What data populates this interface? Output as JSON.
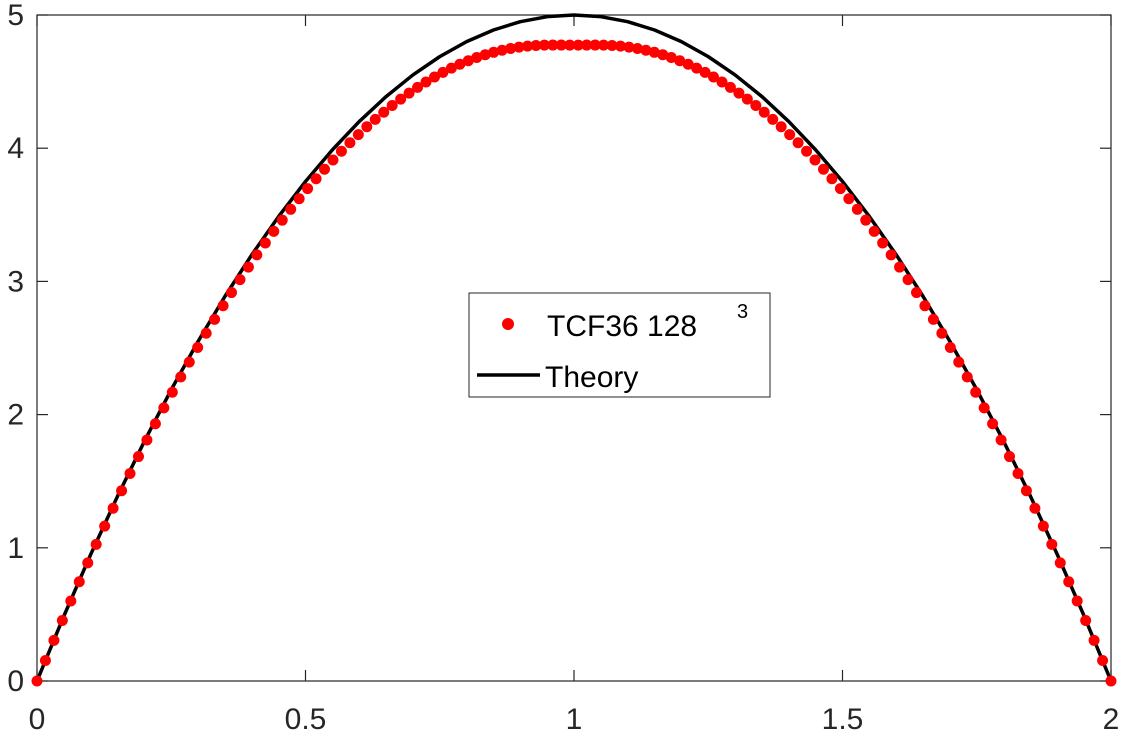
{
  "chart_data": {
    "type": "scatter",
    "title": "",
    "xlabel": "",
    "ylabel": "",
    "xlim": [
      0,
      2
    ],
    "ylim": [
      0,
      5
    ],
    "xticks": [
      0,
      0.5,
      1,
      1.5,
      2
    ],
    "xtick_labels": [
      "0",
      "0.5",
      "1",
      "1.5",
      "2"
    ],
    "yticks": [
      0,
      1,
      2,
      3,
      4,
      5
    ],
    "ytick_labels": [
      "0",
      "1",
      "2",
      "3",
      "4",
      "5"
    ],
    "grid": false,
    "legend": {
      "placement": "center",
      "entries": [
        {
          "label": "TCF36  128",
          "superscript": "3",
          "marker": "dot",
          "color": "#ff0000"
        },
        {
          "label": "Theory",
          "marker": "line",
          "color": "#000000"
        }
      ]
    },
    "series": [
      {
        "name": "TCF36  128^3",
        "kind": "markers",
        "color": "#ff0000",
        "x": [
          0,
          0.0157,
          0.0315,
          0.0472,
          0.063,
          0.0787,
          0.0945,
          0.1102,
          0.126,
          0.1417,
          0.1575,
          0.1732,
          0.189,
          0.2047,
          0.2205,
          0.2362,
          0.252,
          0.2677,
          0.2835,
          0.2992,
          0.315,
          0.3307,
          0.3465,
          0.3622,
          0.378,
          0.3937,
          0.4094,
          0.4252,
          0.4409,
          0.4567,
          0.4724,
          0.4882,
          0.5039,
          0.5197,
          0.5354,
          0.5512,
          0.5669,
          0.5827,
          0.5984,
          0.6142,
          0.6299,
          0.6457,
          0.6614,
          0.6772,
          0.6929,
          0.7087,
          0.7244,
          0.7402,
          0.7559,
          0.7717,
          0.7874,
          0.8031,
          0.8189,
          0.8346,
          0.8504,
          0.8661,
          0.8819,
          0.8976,
          0.9134,
          0.9291,
          0.9449,
          0.9606,
          0.9764,
          0.9921,
          1.0079,
          1.0236,
          1.0394,
          1.0551,
          1.0709,
          1.0866,
          1.1024,
          1.1181,
          1.1339,
          1.1496,
          1.1654,
          1.1811,
          1.1969,
          1.2126,
          1.2283,
          1.2441,
          1.2598,
          1.2756,
          1.2913,
          1.3071,
          1.3228,
          1.3386,
          1.3543,
          1.3701,
          1.3858,
          1.4016,
          1.4173,
          1.4331,
          1.4488,
          1.4646,
          1.4803,
          1.4961,
          1.5118,
          1.5276,
          1.5433,
          1.5591,
          1.5748,
          1.5906,
          1.6063,
          1.622,
          1.6378,
          1.6535,
          1.6693,
          1.685,
          1.7008,
          1.7165,
          1.7323,
          1.748,
          1.7638,
          1.7795,
          1.7953,
          1.811,
          1.8268,
          1.8425,
          1.8583,
          1.874,
          1.8898,
          1.9055,
          1.9213,
          1.937,
          1.9528,
          1.9685,
          1.9843,
          2
        ],
        "y": [
          0,
          0.1539,
          0.3053,
          0.4543,
          0.6008,
          0.7449,
          0.8866,
          1.0258,
          1.1626,
          1.2969,
          1.4287,
          1.5581,
          1.685,
          1.8094,
          1.9313,
          2.0508,
          2.1677,
          2.2822,
          2.3941,
          2.5036,
          2.6105,
          2.715,
          2.8169,
          2.9163,
          3.0132,
          3.1076,
          3.1994,
          3.2887,
          3.3754,
          3.4596,
          3.5413,
          3.6204,
          3.6969,
          3.7709,
          3.8423,
          3.9112,
          3.9774,
          4.0411,
          4.1022,
          4.1607,
          4.2165,
          4.2698,
          4.3205,
          4.3685,
          4.4139,
          4.4567,
          4.4967,
          4.5342,
          4.5689,
          4.601,
          4.6302,
          4.6568,
          4.6806,
          4.7017,
          4.72,
          4.7356,
          4.7483,
          4.7585,
          4.7661,
          4.7711,
          4.7738,
          4.7743,
          4.7743,
          4.7737,
          4.7737,
          4.7743,
          4.7743,
          4.7738,
          4.7711,
          4.7661,
          4.7585,
          4.7483,
          4.7356,
          4.72,
          4.7017,
          4.6806,
          4.6568,
          4.6302,
          4.601,
          4.5689,
          4.5342,
          4.4967,
          4.4567,
          4.4139,
          4.3685,
          4.3205,
          4.2698,
          4.2165,
          4.1607,
          4.1022,
          4.0411,
          3.9774,
          3.9112,
          3.8423,
          3.7709,
          3.6969,
          3.6204,
          3.5413,
          3.4596,
          3.3754,
          3.2887,
          3.1994,
          3.1076,
          3.0132,
          2.9163,
          2.8169,
          2.715,
          2.6105,
          2.5036,
          2.3941,
          2.2822,
          2.1677,
          2.0508,
          1.9313,
          1.8094,
          1.685,
          1.5581,
          1.4287,
          1.2969,
          1.1626,
          1.0258,
          0.8866,
          0.7449,
          0.6008,
          0.4543,
          0.3053,
          0.1539,
          0
        ]
      },
      {
        "name": "Theory",
        "kind": "line",
        "color": "#000000",
        "x": [
          0,
          0.05,
          0.1,
          0.15,
          0.2,
          0.25,
          0.3,
          0.35,
          0.4,
          0.45,
          0.5,
          0.55,
          0.6,
          0.65,
          0.7,
          0.75,
          0.8,
          0.85,
          0.9,
          0.95,
          1,
          1.05,
          1.1,
          1.15,
          1.2,
          1.25,
          1.3,
          1.35,
          1.4,
          1.45,
          1.5,
          1.55,
          1.6,
          1.65,
          1.7,
          1.75,
          1.8,
          1.85,
          1.9,
          1.95,
          2
        ],
        "y": [
          0,
          0.4875,
          0.95,
          1.3875,
          1.8,
          2.1875,
          2.55,
          2.8875,
          3.2,
          3.4875,
          3.75,
          3.9875,
          4.2,
          4.3875,
          4.55,
          4.6875,
          4.8,
          4.8875,
          4.95,
          4.9875,
          5,
          4.9875,
          4.95,
          4.8875,
          4.8,
          4.6875,
          4.55,
          4.3875,
          4.2,
          3.9875,
          3.75,
          3.4875,
          3.2,
          2.8875,
          2.55,
          2.1875,
          1.8,
          1.3875,
          0.95,
          0.4875,
          0
        ]
      }
    ]
  }
}
